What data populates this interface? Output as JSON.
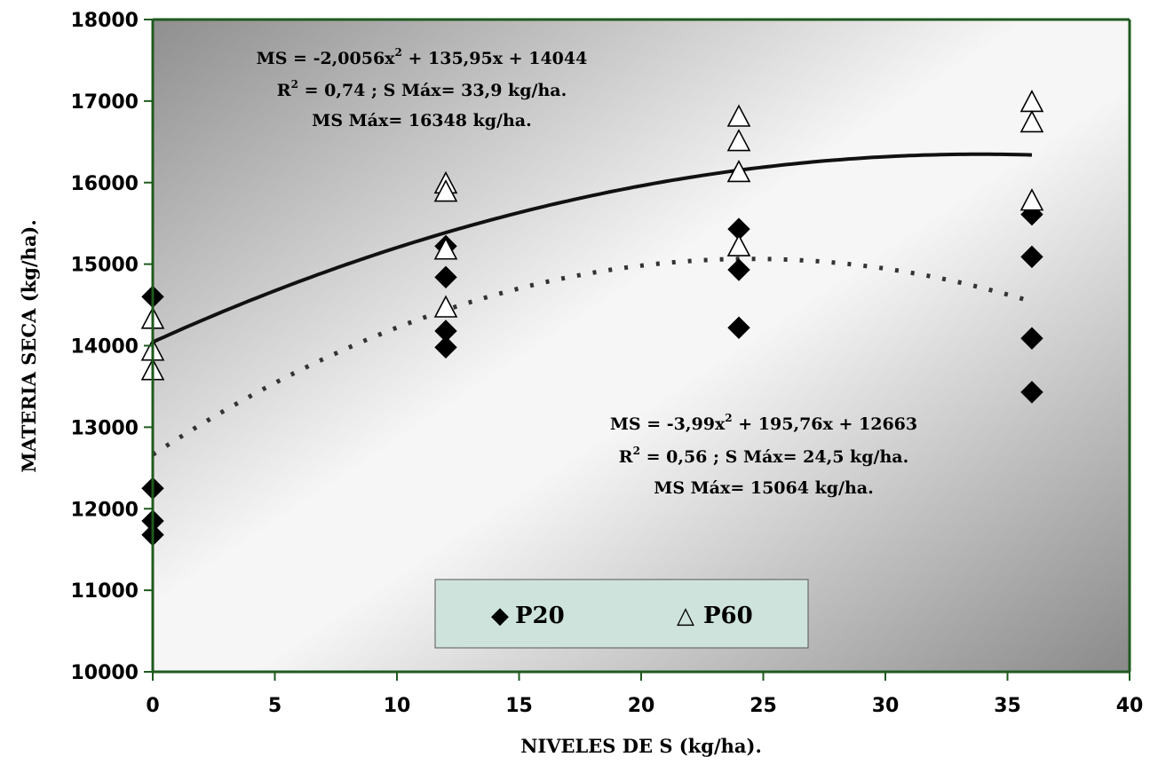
{
  "chart_data": {
    "type": "scatter",
    "xlabel": "NIVELES DE S (kg/ha).",
    "ylabel": "MATERIA SECA (kg/ha).",
    "xlim": [
      0,
      40
    ],
    "ylim": [
      10000,
      18000
    ],
    "x_ticks": [
      "0",
      "5",
      "10",
      "15",
      "20",
      "25",
      "30",
      "35",
      "40"
    ],
    "y_ticks": [
      "10000",
      "11000",
      "12000",
      "13000",
      "14000",
      "15000",
      "16000",
      "17000",
      "18000"
    ],
    "background": "gray-to-white gradient",
    "grid": false,
    "legend_position": "bottom-center",
    "series": [
      {
        "name": "P20",
        "marker": "filled-diamond",
        "color": "#000000",
        "points": [
          [
            0,
            14600
          ],
          [
            0,
            12250
          ],
          [
            0,
            11850
          ],
          [
            0,
            11680
          ],
          [
            12,
            15220
          ],
          [
            12,
            14840
          ],
          [
            12,
            14180
          ],
          [
            12,
            13980
          ],
          [
            24,
            15430
          ],
          [
            24,
            14930
          ],
          [
            24,
            14220
          ],
          [
            36,
            15610
          ],
          [
            36,
            15090
          ],
          [
            36,
            14090
          ],
          [
            36,
            13430
          ]
        ]
      },
      {
        "name": "P60",
        "marker": "open-triangle",
        "color": "#000000",
        "points": [
          [
            0,
            14320
          ],
          [
            0,
            13930
          ],
          [
            0,
            13690
          ],
          [
            12,
            15980
          ],
          [
            12,
            15880
          ],
          [
            12,
            15170
          ],
          [
            12,
            14460
          ],
          [
            24,
            16800
          ],
          [
            24,
            16500
          ],
          [
            24,
            16120
          ],
          [
            24,
            15210
          ],
          [
            36,
            16980
          ],
          [
            36,
            16730
          ],
          [
            36,
            15770
          ]
        ]
      }
    ],
    "fits": [
      {
        "series": "P60",
        "style": "solid",
        "coefficients": [
          -2.0056,
          135.95,
          14044
        ],
        "x_range": [
          0,
          36
        ],
        "eq_label_parts": [
          "MS = -2,0056x",
          "2",
          " + 135,95x + 14044"
        ],
        "r2_label_parts": [
          "R",
          "2",
          " = 0,74 ; S Máx= 33,9 kg/ha."
        ],
        "max_label": "MS Máx= 16348 kg/ha."
      },
      {
        "series": "P20",
        "style": "dotted",
        "coefficients": [
          -3.99,
          195.76,
          12663
        ],
        "x_range": [
          0,
          36
        ],
        "eq_label_parts": [
          "MS = -3,99x",
          "2",
          " + 195,76x + 12663"
        ],
        "r2_label_parts": [
          "R",
          "2",
          " = 0,56 ; S Máx= 24,5 kg/ha."
        ],
        "max_label": "MS Máx= 15064 kg/ha."
      }
    ],
    "legend": [
      {
        "label": "P20",
        "symbol": "◆"
      },
      {
        "label": "P60",
        "symbol": "△"
      }
    ]
  }
}
